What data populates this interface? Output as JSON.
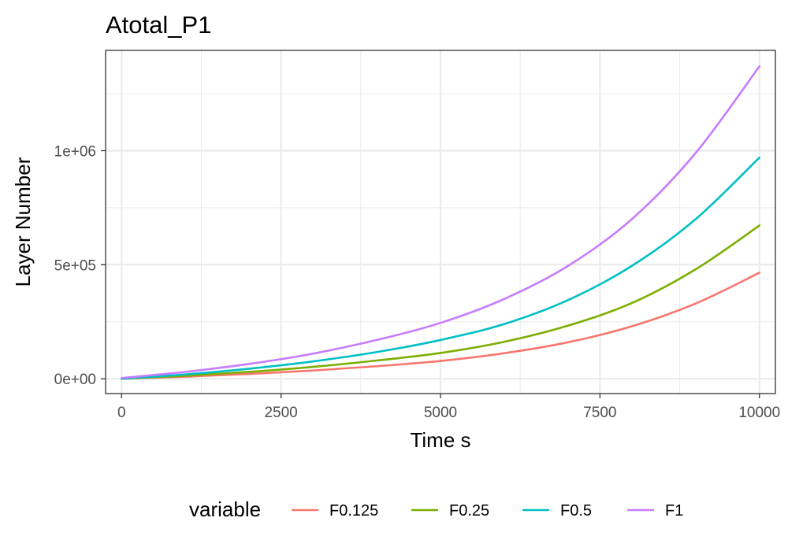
{
  "chart_data": {
    "type": "line",
    "title": "Atotal_P1",
    "xlabel": "Time s",
    "ylabel": "Layer Number",
    "xlim": [
      -250,
      10250
    ],
    "ylim": [
      -65000,
      1440000
    ],
    "x_ticks": [
      0,
      2500,
      5000,
      7500,
      10000
    ],
    "x_tick_labels": [
      "0",
      "2500",
      "5000",
      "7500",
      "10000"
    ],
    "y_ticks": [
      0,
      500000,
      1000000
    ],
    "y_tick_labels": [
      "0e+00",
      "5e+05",
      "1e+06"
    ],
    "grid": true,
    "legend": {
      "title": "variable",
      "position": "bottom"
    },
    "series": [
      {
        "name": "F0.125",
        "color": "#F8766D",
        "x": [
          0,
          1000,
          2000,
          3000,
          4000,
          5000,
          6000,
          7000,
          8000,
          9000,
          10000
        ],
        "y": [
          0,
          9000,
          21000,
          36000,
          55000,
          78000,
          112000,
          160000,
          230000,
          330000,
          465000
        ]
      },
      {
        "name": "F0.25",
        "color": "#7CAE00",
        "x": [
          0,
          1000,
          2000,
          3000,
          4000,
          5000,
          6000,
          7000,
          8000,
          9000,
          10000
        ],
        "y": [
          0,
          13000,
          30000,
          52000,
          80000,
          113000,
          162000,
          233000,
          332000,
          480000,
          672000
        ]
      },
      {
        "name": "F0.5",
        "color": "#00BFC4",
        "x": [
          0,
          1000,
          2000,
          3000,
          4000,
          5000,
          6000,
          7000,
          8000,
          9000,
          10000
        ],
        "y": [
          0,
          19000,
          44000,
          76000,
          117000,
          170000,
          240000,
          345000,
          495000,
          700000,
          970000
        ]
      },
      {
        "name": "F1",
        "color": "#C77CFF",
        "x": [
          0,
          1000,
          2000,
          3000,
          4000,
          5000,
          6000,
          7000,
          8000,
          9000,
          10000
        ],
        "y": [
          3000,
          30000,
          65000,
          110000,
          170000,
          245000,
          350000,
          495000,
          700000,
          990000,
          1370000
        ]
      }
    ]
  }
}
